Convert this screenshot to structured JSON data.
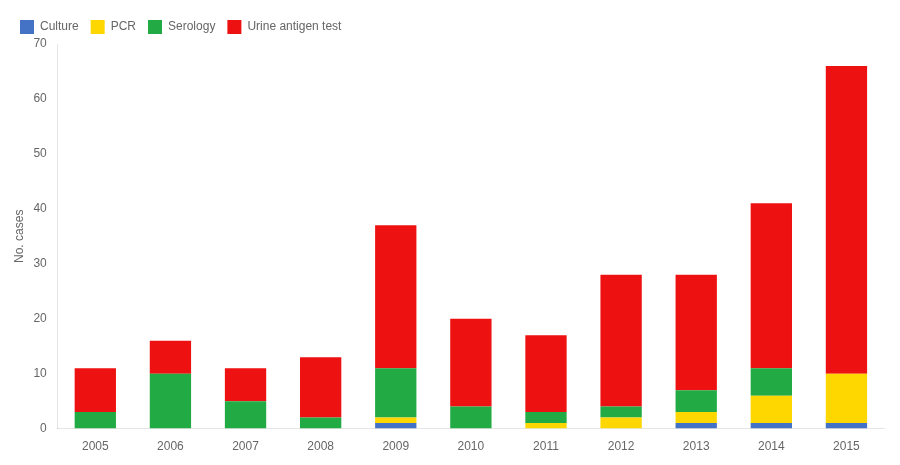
{
  "chart_data": {
    "type": "bar",
    "stacked": true,
    "categories": [
      "2005",
      "2006",
      "2007",
      "2008",
      "2009",
      "2010",
      "2011",
      "2012",
      "2013",
      "2014",
      "2015"
    ],
    "series": [
      {
        "name": "Culture",
        "color": "#4472c4",
        "values": [
          0,
          0,
          0,
          0,
          1,
          0,
          0,
          0,
          1,
          1,
          1
        ]
      },
      {
        "name": "PCR",
        "color": "#ffd700",
        "values": [
          0,
          0,
          0,
          0,
          1,
          0,
          1,
          2,
          2,
          5,
          9
        ]
      },
      {
        "name": "Serology",
        "color": "#22aa44",
        "values": [
          3,
          10,
          5,
          2,
          9,
          4,
          2,
          2,
          4,
          5,
          0
        ]
      },
      {
        "name": "Urine antigen test",
        "color": "#ee1111",
        "values": [
          8,
          6,
          6,
          11,
          26,
          16,
          14,
          24,
          21,
          30,
          56
        ]
      }
    ],
    "ylabel": "No. cases",
    "ylim": [
      0,
      70
    ],
    "yticks": [
      0,
      10,
      20,
      30,
      40,
      50,
      60,
      70
    ],
    "grid": false,
    "legend": "upper left"
  }
}
